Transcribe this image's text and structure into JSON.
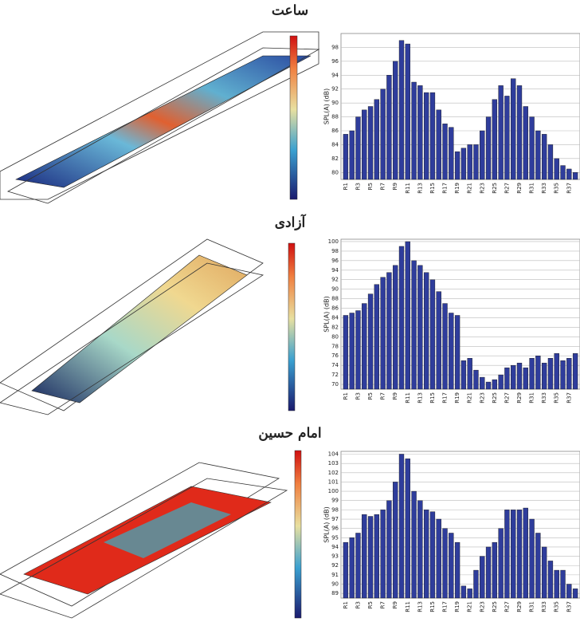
{
  "chart_data": [
    {
      "type": "bar",
      "title": "ساعت",
      "y_label": "SPL(A) (dB)",
      "color": "#2f3d9c",
      "grid": true,
      "categories": [
        "R1",
        null,
        "R3",
        null,
        "R5",
        null,
        "R7",
        null,
        "R9",
        null,
        "R11",
        null,
        "R13",
        null,
        "R15",
        null,
        "R17",
        null,
        "R19",
        null,
        "R21",
        null,
        "R23",
        null,
        "R25",
        null,
        "R27",
        null,
        "R29",
        null,
        "R31",
        null,
        "R33",
        null,
        "R35",
        null,
        "R37",
        null
      ],
      "values": [
        85.5,
        86,
        88,
        89,
        89.5,
        90.5,
        92,
        94,
        96,
        99,
        98.5,
        93,
        92.5,
        91.5,
        91.5,
        89,
        87,
        86.5,
        83,
        83.5,
        84,
        84,
        86,
        88,
        90.5,
        92.5,
        91,
        93.5,
        92.5,
        89.5,
        88,
        86,
        85.5,
        84,
        82,
        81,
        80.5,
        80
      ],
      "ylim": [
        79,
        100
      ],
      "yticks": [
        80,
        82,
        84,
        86,
        88,
        90,
        92,
        94,
        96,
        98
      ]
    },
    {
      "type": "bar",
      "title": "آزادی",
      "y_label": "SPL(A) (dB)",
      "color": "#2f3d9c",
      "grid": true,
      "categories": [
        "R1",
        null,
        "R3",
        null,
        "R5",
        null,
        "R7",
        null,
        "R9",
        null,
        "R11",
        null,
        "R13",
        null,
        "R15",
        null,
        "R17",
        null,
        "R19",
        null,
        "R21",
        null,
        "R23",
        null,
        "R25",
        null,
        "R27",
        null,
        "R29",
        null,
        "R31",
        null,
        "R33",
        null,
        "R35",
        null,
        "R37",
        null
      ],
      "values": [
        84.5,
        85,
        85.5,
        87,
        89,
        91,
        92.5,
        93.5,
        95,
        99,
        100,
        96,
        95,
        93.5,
        92,
        89.5,
        87,
        85,
        84.5,
        75,
        75.5,
        73,
        71.5,
        70.5,
        71,
        72,
        73.5,
        74,
        74.5,
        73.5,
        75.5,
        76,
        74.5,
        75.5,
        76.5,
        75,
        75.5,
        76.5
      ],
      "ylim": [
        69,
        100.5
      ],
      "yticks": [
        70,
        72,
        74,
        76,
        78,
        80,
        82,
        84,
        86,
        88,
        90,
        92,
        94,
        96,
        98,
        100
      ]
    },
    {
      "type": "bar",
      "title": "امام حسین",
      "y_label": "SPL(A) (dB)",
      "color": "#2f3d9c",
      "grid": true,
      "categories": [
        "R1",
        null,
        "R3",
        null,
        "R5",
        null,
        "R7",
        null,
        "R9",
        null,
        "R11",
        null,
        "R13",
        null,
        "R15",
        null,
        "R17",
        null,
        "R19",
        null,
        "R21",
        null,
        "R23",
        null,
        "R25",
        null,
        "R27",
        null,
        "R29",
        null,
        "R31",
        null,
        "R33",
        null,
        "R35",
        null,
        "R37",
        null
      ],
      "values": [
        94.5,
        95,
        95.5,
        97.5,
        97.3,
        97.5,
        98,
        99,
        101,
        104,
        103.5,
        100,
        99,
        98,
        97.8,
        97,
        96,
        95.5,
        94.5,
        89.8,
        89.5,
        91.5,
        93,
        94,
        94.5,
        96,
        98,
        98,
        98,
        98.2,
        97,
        95.5,
        94,
        92.5,
        91.5,
        91.5,
        90,
        89.5
      ],
      "ylim": [
        88.5,
        104.3
      ],
      "yticks": [
        89,
        90,
        91,
        92,
        93,
        94,
        95,
        96,
        97,
        98,
        99,
        100,
        101,
        102,
        103,
        104
      ]
    }
  ]
}
